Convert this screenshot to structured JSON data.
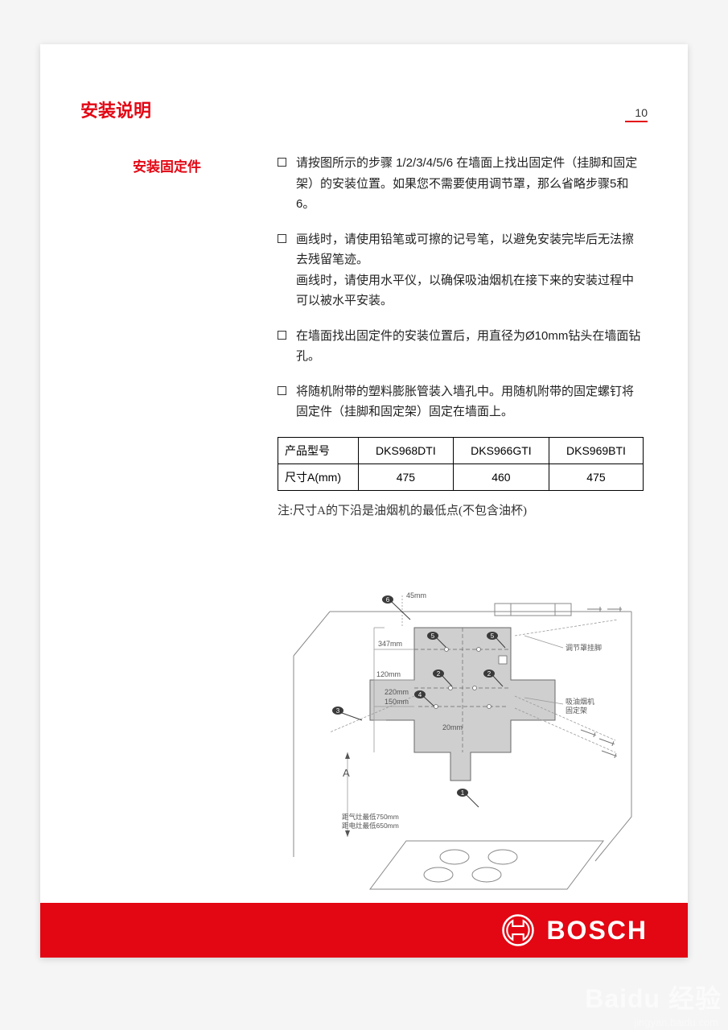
{
  "header": {
    "title": "安装说明",
    "page_number": "10",
    "title_color": "#e30613"
  },
  "section": {
    "subtitle": "安装固定件",
    "subtitle_color": "#e30613"
  },
  "bullets": [
    {
      "text": "请按图所示的步骤 1/2/3/4/5/6 在墙面上找出固定件（挂脚和固定架）的安装位置。如果您不需要使用调节罩，那么省略步骤5和6。"
    },
    {
      "text": "画线时，请使用铅笔或可擦的记号笔，以避免安装完毕后无法擦去残留笔迹。\n画线时，请使用水平仪，以确保吸油烟机在接下来的安装过程中可以被水平安装。"
    },
    {
      "text": "在墙面找出固定件的安装位置后，用直径为Ø10mm钻头在墙面钻孔。"
    },
    {
      "text": "将随机附带的塑料膨胀管装入墙孔中。用随机附带的固定螺钉将固定件（挂脚和固定架）固定在墙面上。"
    }
  ],
  "table": {
    "columns": [
      "产品型号",
      "DKS968DTI",
      "DKS966GTI",
      "DKS969BTI"
    ],
    "rows": [
      [
        "尺寸A(mm)",
        "475",
        "460",
        "475"
      ]
    ],
    "border_color": "#000000"
  },
  "note": "注:尺寸A的下沿是油烟机的最低点(不包含油杯)",
  "diagram": {
    "type": "technical-drawing",
    "labels": {
      "d45": "45mm",
      "d347": "347mm",
      "d120": "120mm",
      "d220": "220mm",
      "d150": "150mm",
      "d20": "20mm",
      "dA": "A",
      "cover_hook": "调节罩挂脚",
      "hood_bracket": "吸油烟机\n固定架",
      "gas": "距气灶最低750mm",
      "elec": "距电灶最低650mm"
    },
    "colors": {
      "line": "#888888",
      "dim_line": "#999999",
      "template_fill": "#cfcfcf",
      "template_stroke": "#6a6a6a",
      "marker_fill": "#3a3a3a",
      "marker_text": "#ffffff",
      "label_text": "#555555"
    },
    "font_sizes": {
      "dim": 9,
      "label": 9,
      "marker": 8
    }
  },
  "footer": {
    "brand": "BOSCH",
    "bar_color": "#e30613",
    "logo_color": "#ffffff"
  },
  "watermark": {
    "main": "Baidu 经验",
    "url": "jingyan.baidu.com"
  }
}
